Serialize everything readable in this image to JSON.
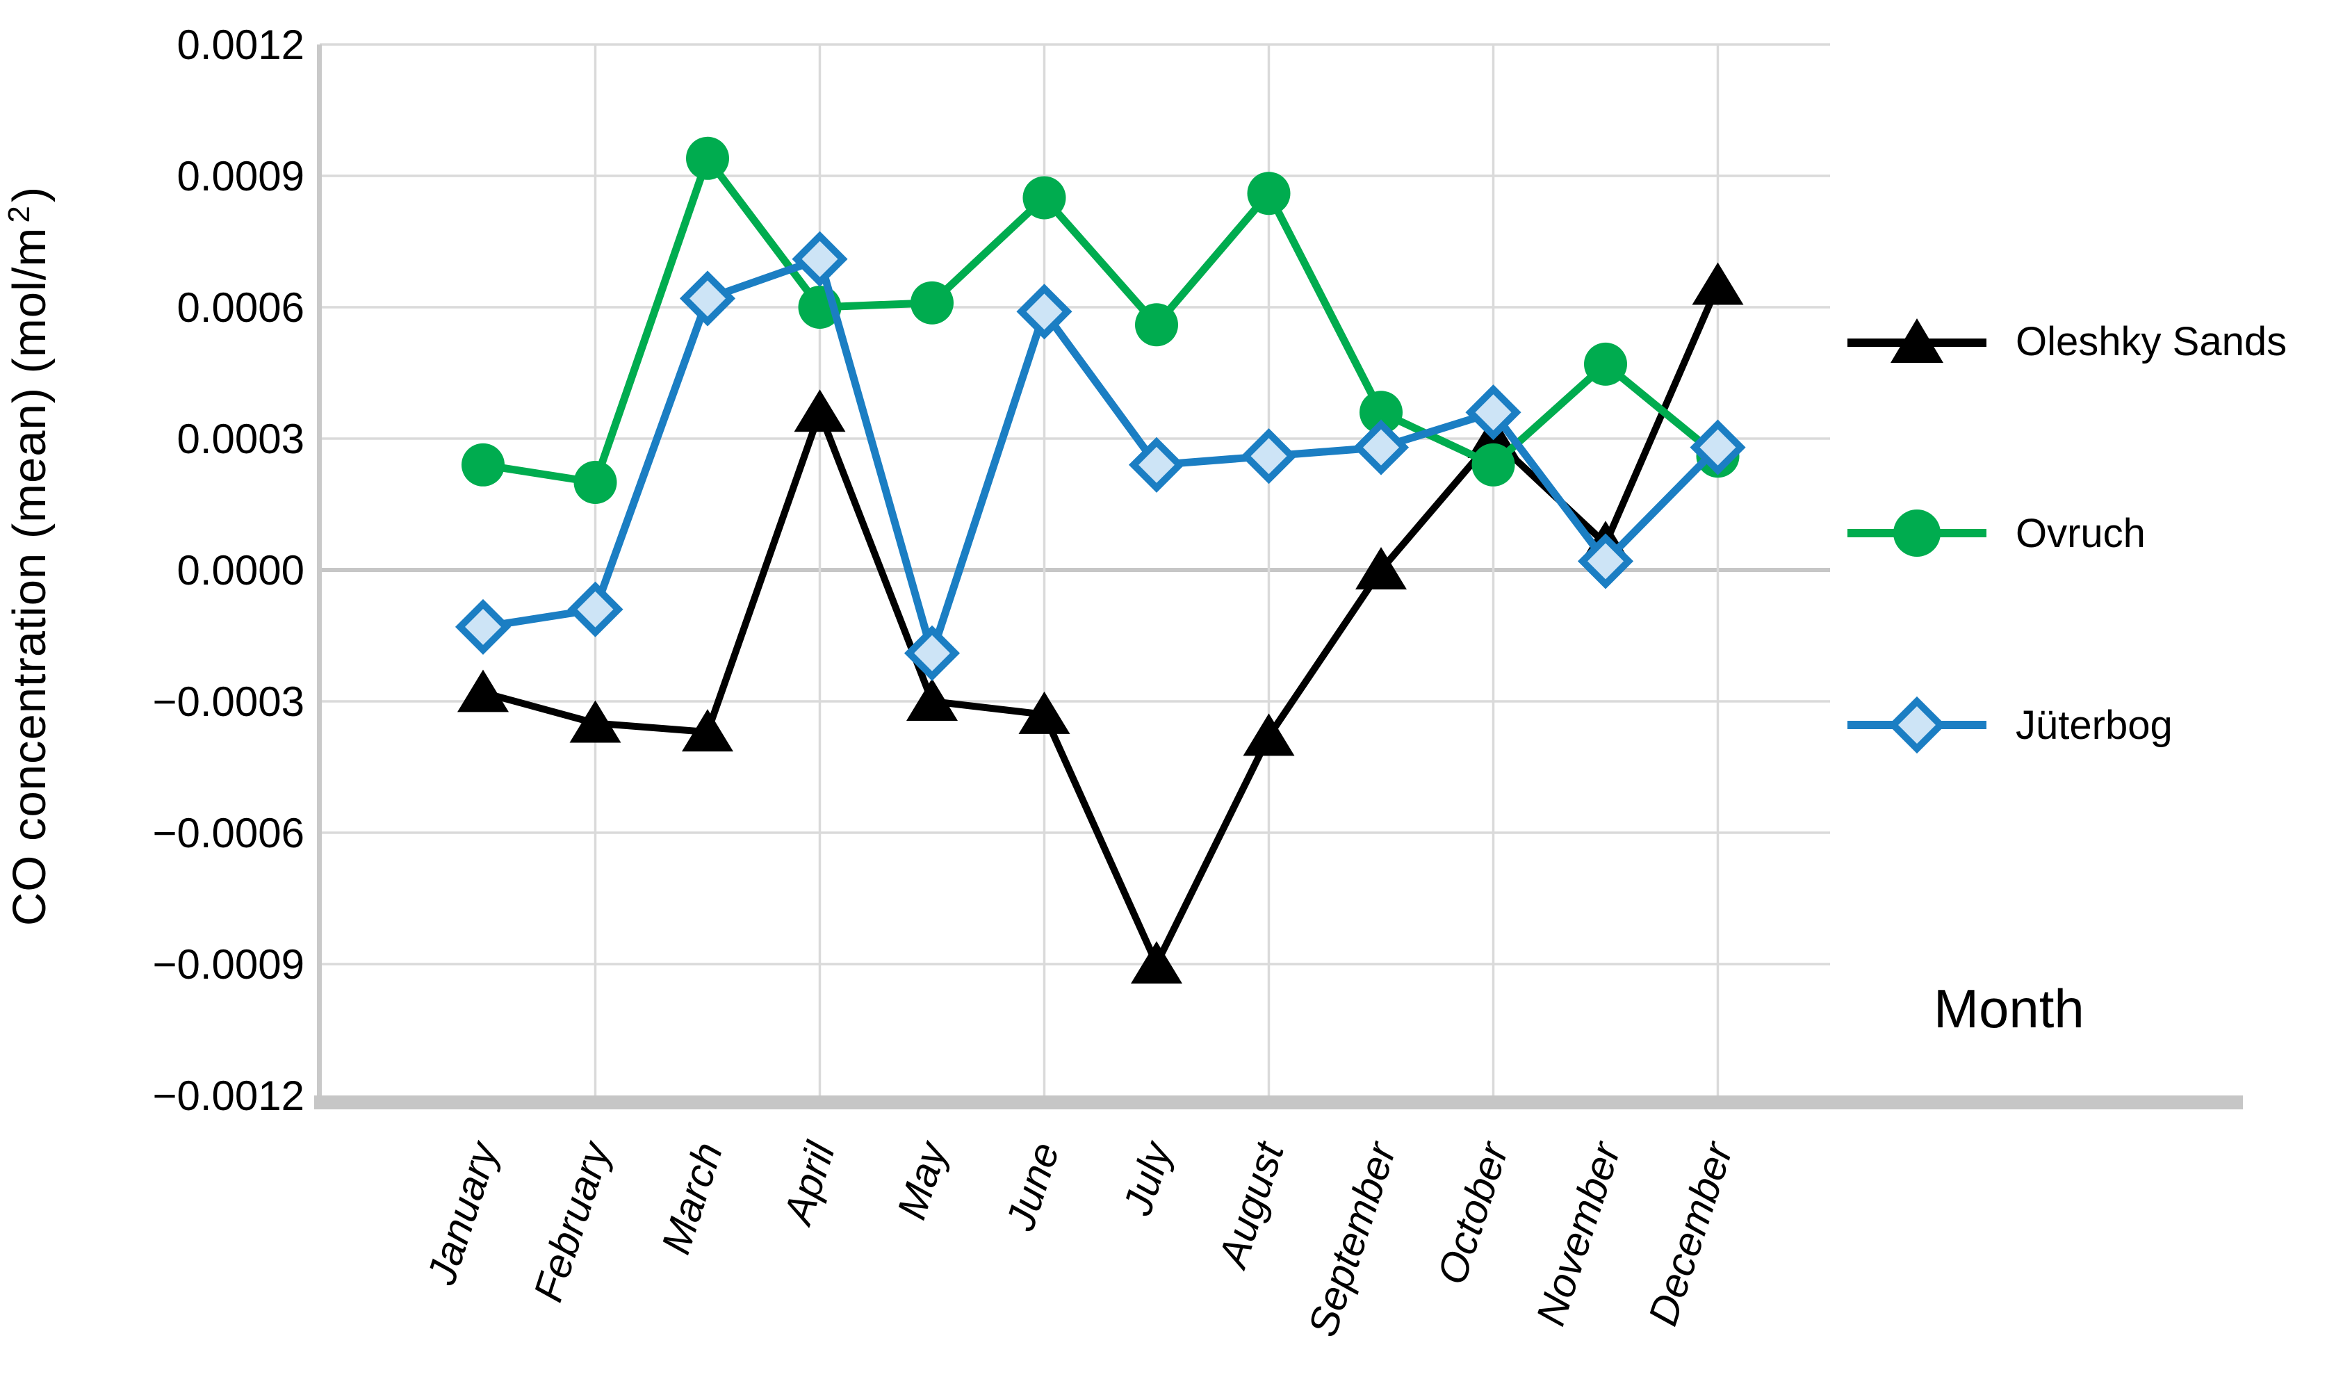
{
  "chart_data": {
    "type": "line",
    "title": "",
    "xlabel": "Month",
    "ylabel_prefix": "CO concentration (mean) (mol/m",
    "ylabel_sup": "2",
    "ylabel_suffix": ")",
    "categories": [
      "January",
      "February",
      "March",
      "April",
      "May",
      "June",
      "July",
      "August",
      "September",
      "October",
      "November",
      "December"
    ],
    "series": [
      {
        "name": "Oleshky Sands",
        "color": "#000000",
        "marker": "triangle",
        "values": [
          -0.00028,
          -0.00035,
          -0.00037,
          0.00036,
          -0.0003,
          -0.00033,
          -0.0009,
          -0.00038,
          0.0,
          0.0003,
          6e-05,
          0.00065
        ]
      },
      {
        "name": "Ovruch",
        "color": "#00AC4F",
        "marker": "circle",
        "values": [
          0.00024,
          0.0002,
          0.00094,
          0.0006,
          0.00061,
          0.00085,
          0.00056,
          0.00086,
          0.00036,
          0.00024,
          0.00047,
          0.00026
        ]
      },
      {
        "name": "Jüterbog",
        "color": "#1B7EC3",
        "marker": "diamond",
        "marker_fill": "#CDE4F6",
        "values": [
          -0.00013,
          -9e-05,
          0.00062,
          0.00071,
          -0.00019,
          0.00059,
          0.00024,
          0.00026,
          0.00028,
          0.00036,
          2e-05,
          0.00028
        ]
      }
    ],
    "y_axis": {
      "min": -0.0012,
      "max": 0.0012,
      "step": 0.0003,
      "tick_values": [
        0.0012,
        0.0009,
        0.0006,
        0.0003,
        0.0,
        -0.0003,
        -0.0006,
        -0.0009,
        -0.0012
      ],
      "tick_labels": [
        "0.0012",
        "0.0009",
        "0.0006",
        "0.0003",
        "0.0000",
        "−0.0003",
        "−0.0006",
        "−0.0009",
        "−0.0012"
      ]
    },
    "grid": "on",
    "legend_position": "right",
    "colors": {
      "gridline": "#DADADA",
      "zero_gridline": "#C6C6C6",
      "axis_line": "#C9C9C9",
      "axis_bar": "#C6C6C6",
      "background": "#FFFFFF"
    }
  }
}
